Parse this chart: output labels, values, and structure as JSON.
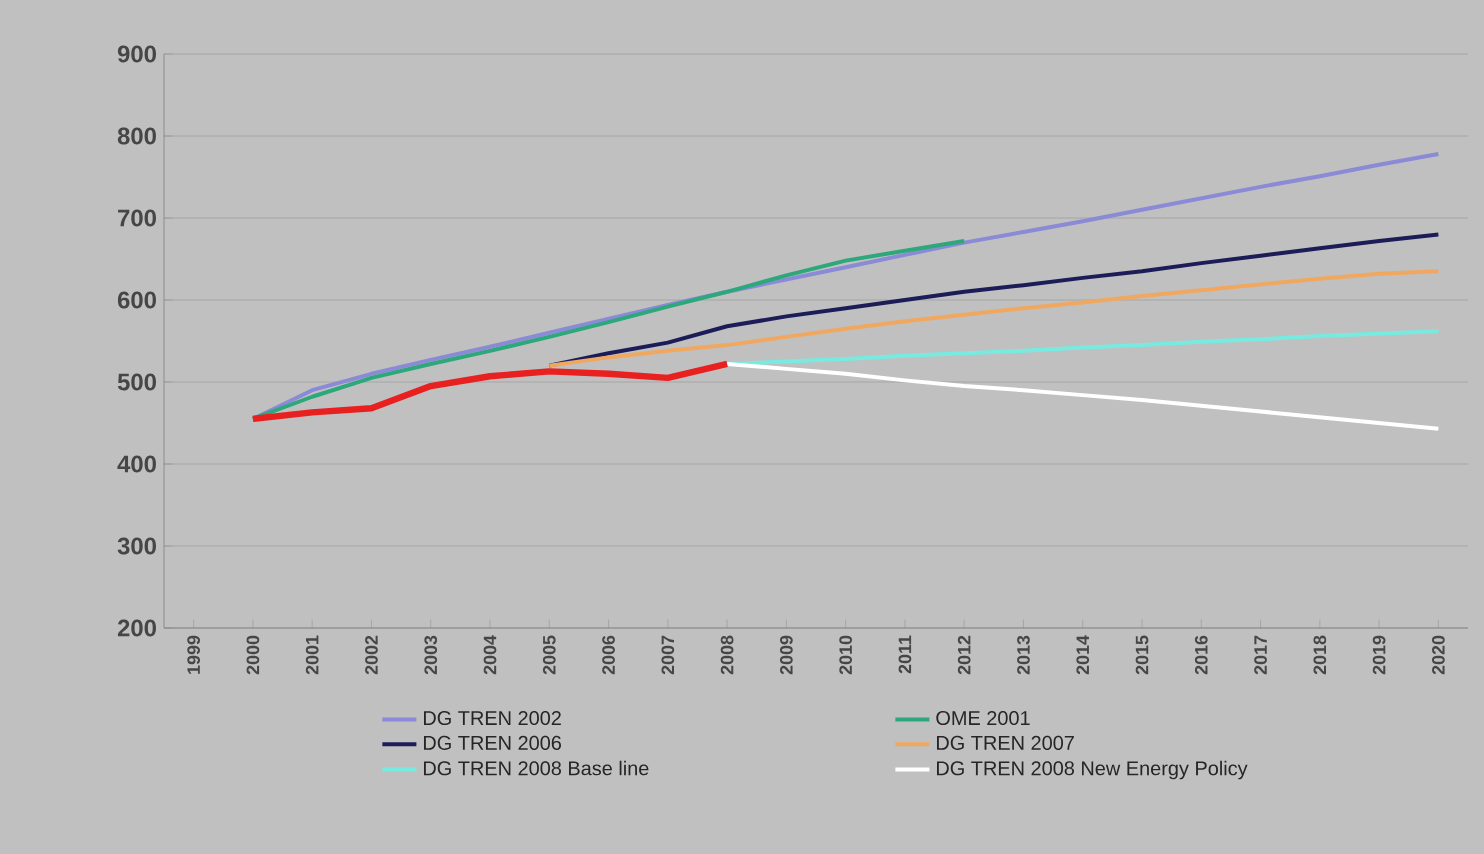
{
  "chart_data": {
    "type": "line",
    "categories": [
      "1999",
      "2000",
      "2001",
      "2002",
      "2003",
      "2004",
      "2005",
      "2006",
      "2007",
      "2008",
      "2009",
      "2010",
      "2011",
      "2012",
      "2013",
      "2014",
      "2015",
      "2016",
      "2017",
      "2018",
      "2019",
      "2020"
    ],
    "series": [
      {
        "name": "DG TREN 2002",
        "color": "#8a8ad6",
        "values": [
          null,
          455,
          490,
          510,
          527,
          543,
          560,
          577,
          594,
          610,
          625,
          640,
          655,
          670,
          683,
          696,
          710,
          724,
          738,
          751,
          765,
          778
        ]
      },
      {
        "name": "OME 2001",
        "color": "#2ca87a",
        "values": [
          null,
          455,
          482,
          505,
          522,
          538,
          555,
          573,
          592,
          610,
          630,
          648,
          660,
          672,
          null,
          null,
          null,
          null,
          null,
          null,
          null,
          null
        ]
      },
      {
        "name": "DG TREN 2006",
        "color": "#1c1c58",
        "values": [
          null,
          null,
          null,
          null,
          null,
          null,
          520,
          535,
          548,
          568,
          580,
          590,
          600,
          610,
          618,
          627,
          635,
          645,
          654,
          663,
          672,
          680
        ]
      },
      {
        "name": "DG TREN 2007",
        "color": "#f0a860",
        "values": [
          null,
          null,
          null,
          null,
          null,
          null,
          520,
          530,
          538,
          545,
          555,
          565,
          574,
          582,
          590,
          597,
          605,
          612,
          619,
          626,
          632,
          635
        ]
      },
      {
        "name": "DG TREN 2008 Base line",
        "color": "#78eae0",
        "values": [
          null,
          null,
          null,
          null,
          null,
          null,
          null,
          null,
          null,
          522,
          525,
          528,
          532,
          535,
          538,
          542,
          545,
          549,
          552,
          556,
          559,
          562
        ]
      },
      {
        "name": "DG TREN 2008 New Energy Policy",
        "color": "#ffffff",
        "values": [
          null,
          null,
          null,
          null,
          null,
          null,
          null,
          null,
          null,
          522,
          516,
          510,
          502,
          495,
          490,
          484,
          478,
          471,
          464,
          457,
          450,
          443
        ]
      },
      {
        "color": "#e82020",
        "values": [
          null,
          455,
          463,
          468,
          495,
          507,
          513,
          510,
          505,
          522,
          null,
          null,
          null,
          null,
          null,
          null,
          null,
          null,
          null,
          null,
          null,
          null
        ]
      }
    ],
    "ylim": [
      200,
      900
    ],
    "yticks": [
      200,
      300,
      400,
      500,
      600,
      700,
      800,
      900
    ],
    "grid": "y",
    "legend": "bottom"
  }
}
